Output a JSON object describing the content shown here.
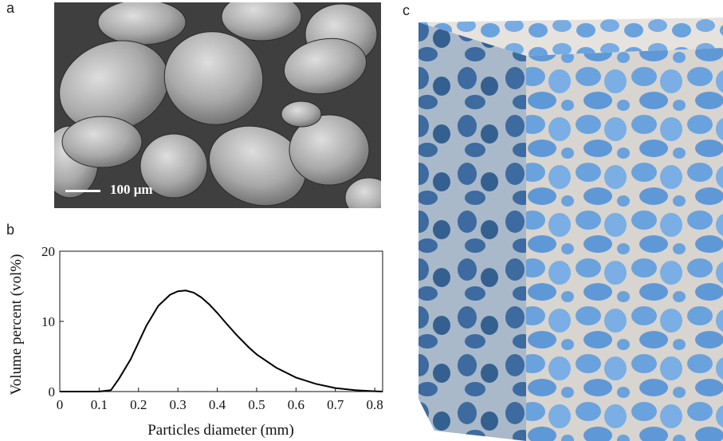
{
  "panels": {
    "a": "a",
    "b": "b",
    "c": "c"
  },
  "sem": {
    "scale_bar_label": "100 μm"
  },
  "chart_data": {
    "type": "line",
    "title": "",
    "xlabel": "Particles diameter (mm)",
    "ylabel": "Volume percent (vol%)",
    "xlim": [
      0,
      0.82
    ],
    "ylim": [
      0,
      20
    ],
    "xticks": [
      "0",
      "0.1",
      "0.2",
      "0.3",
      "0.4",
      "0.5",
      "0.6",
      "0.7",
      "0.8"
    ],
    "yticks": [
      "0",
      "10",
      "20"
    ],
    "series": [
      {
        "x": [
          0,
          0.1,
          0.13,
          0.15,
          0.18,
          0.2,
          0.22,
          0.25,
          0.28,
          0.3,
          0.32,
          0.34,
          0.36,
          0.38,
          0.4,
          0.42,
          0.45,
          0.48,
          0.5,
          0.55,
          0.6,
          0.65,
          0.7,
          0.75,
          0.8,
          0.82
        ],
        "y": [
          0,
          0,
          0.2,
          1.8,
          4.6,
          7.0,
          9.4,
          12.2,
          13.8,
          14.3,
          14.4,
          14.1,
          13.4,
          12.4,
          11.2,
          9.9,
          8.0,
          6.3,
          5.3,
          3.4,
          2.0,
          1.1,
          0.5,
          0.2,
          0.05,
          0
        ]
      }
    ]
  },
  "colors": {
    "sem_background": "#4a4a4a",
    "grain": "#b8b8b8",
    "cube_face": "#5d8fc8",
    "cube_shadow": "#3e6da8",
    "matrix": "#d9d6d2"
  }
}
